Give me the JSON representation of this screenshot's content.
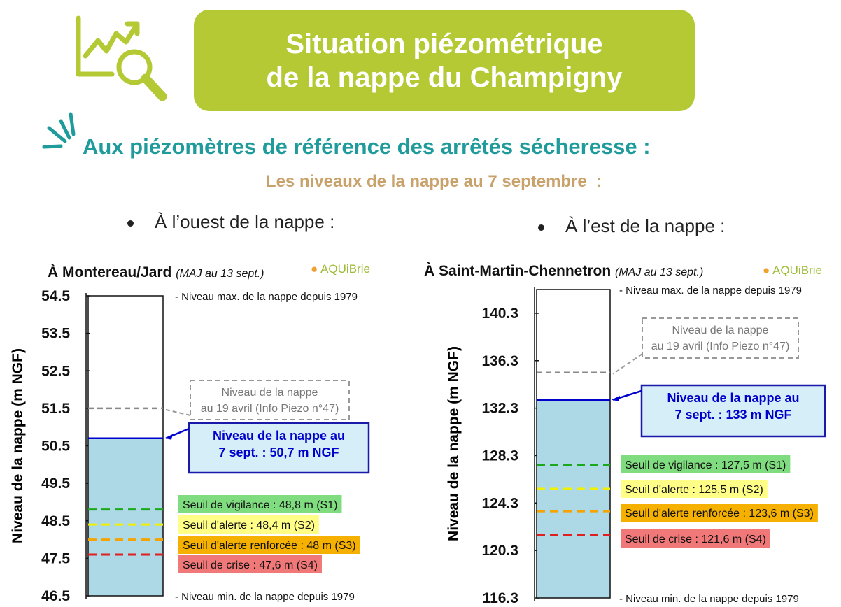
{
  "header": {
    "title_line1": "Situation piézométrique",
    "title_line2": "de la nappe du Champigny",
    "subtitle": "Aux piézomètres de référence des arrêtés sécheresse :",
    "date_line": "Les niveaux de la nappe au 7 septembre  :",
    "west_label": "À l’ouest de la nappe :",
    "east_label": "À l’est de la nappe :"
  },
  "colors": {
    "banner": "#b5c935",
    "subtitle": "#1f9b9b",
    "date_line": "#c9a16a",
    "water": "#add8e6",
    "current_level": "#0000cc",
    "vigilance": "#1ca81c",
    "alerte": "#f0f000",
    "alerte_renforcee": "#f5a300",
    "crise": "#e02020",
    "april_level": "#888888"
  },
  "icons": [
    "chart-magnifier-icon",
    "sparkle-icon",
    "aquibrie-logo-icon"
  ],
  "chart_data": [
    {
      "type": "bar",
      "title": "À Montereau/Jard",
      "update_note": "(MAJ au 13 sept.)",
      "logo_text": "AQUiBrie",
      "ylabel": "Niveau de la nappe (m NGF)",
      "ylim": [
        46.5,
        54.5
      ],
      "yticks": [
        "54.5",
        "53.5",
        "52.5",
        "51.5",
        "50.5",
        "49.5",
        "48.5",
        "47.5",
        "46.5"
      ],
      "max_label": "- Niveau max. de la nappe depuis 1979",
      "min_label": "- Niveau min. de la nappe depuis 1979",
      "current": {
        "value": 50.7,
        "label_line1": "Niveau de la nappe au",
        "label_line2": "7 sept. : 50,7 m NGF"
      },
      "april": {
        "value": 51.5,
        "label_line1": "Niveau de la nappe",
        "label_line2": "au 19 avril (Info Piezo n°47)"
      },
      "thresholds": [
        {
          "name": "Seuil de vigilance : 48,8 m (S1)",
          "value": 48.8
        },
        {
          "name": "Seuil d'alerte : 48,4 m (S2)",
          "value": 48.4
        },
        {
          "name": "Seuil d'alerte renforcée : 48 m (S3)",
          "value": 48.0
        },
        {
          "name": "Seuil de crise : 47,6 m (S4)",
          "value": 47.6
        }
      ]
    },
    {
      "type": "bar",
      "title": "À Saint-Martin-Chennetron",
      "update_note": "(MAJ au 13 sept.)",
      "logo_text": "AQUiBrie",
      "ylabel": "Niveau de la nappe (m NGF)",
      "ylim": [
        116.3,
        142.3
      ],
      "yticks": [
        "140.3",
        "136.3",
        "132.3",
        "128.3",
        "124.3",
        "120.3",
        "116.3"
      ],
      "max_label": "- Niveau max. de la nappe depuis 1979",
      "min_label": "- Niveau min. de la nappe depuis 1979",
      "current": {
        "value": 133,
        "label_line1": "Niveau de la nappe au",
        "label_line2": "7 sept. : 133 m NGF"
      },
      "april": {
        "value": 135.3,
        "label_line1": "Niveau de la nappe",
        "label_line2": "au 19 avril (Info Piezo n°47)"
      },
      "thresholds": [
        {
          "name": "Seuil de vigilance : 127,5 m (S1)",
          "value": 127.5
        },
        {
          "name": "Seuil d'alerte : 125,5 m (S2)",
          "value": 125.5
        },
        {
          "name": "Seuil d'alerte renforcée : 123,6 m (S3)",
          "value": 123.6
        },
        {
          "name": "Seuil de crise : 121,6 m (S4)",
          "value": 121.6
        }
      ]
    }
  ]
}
